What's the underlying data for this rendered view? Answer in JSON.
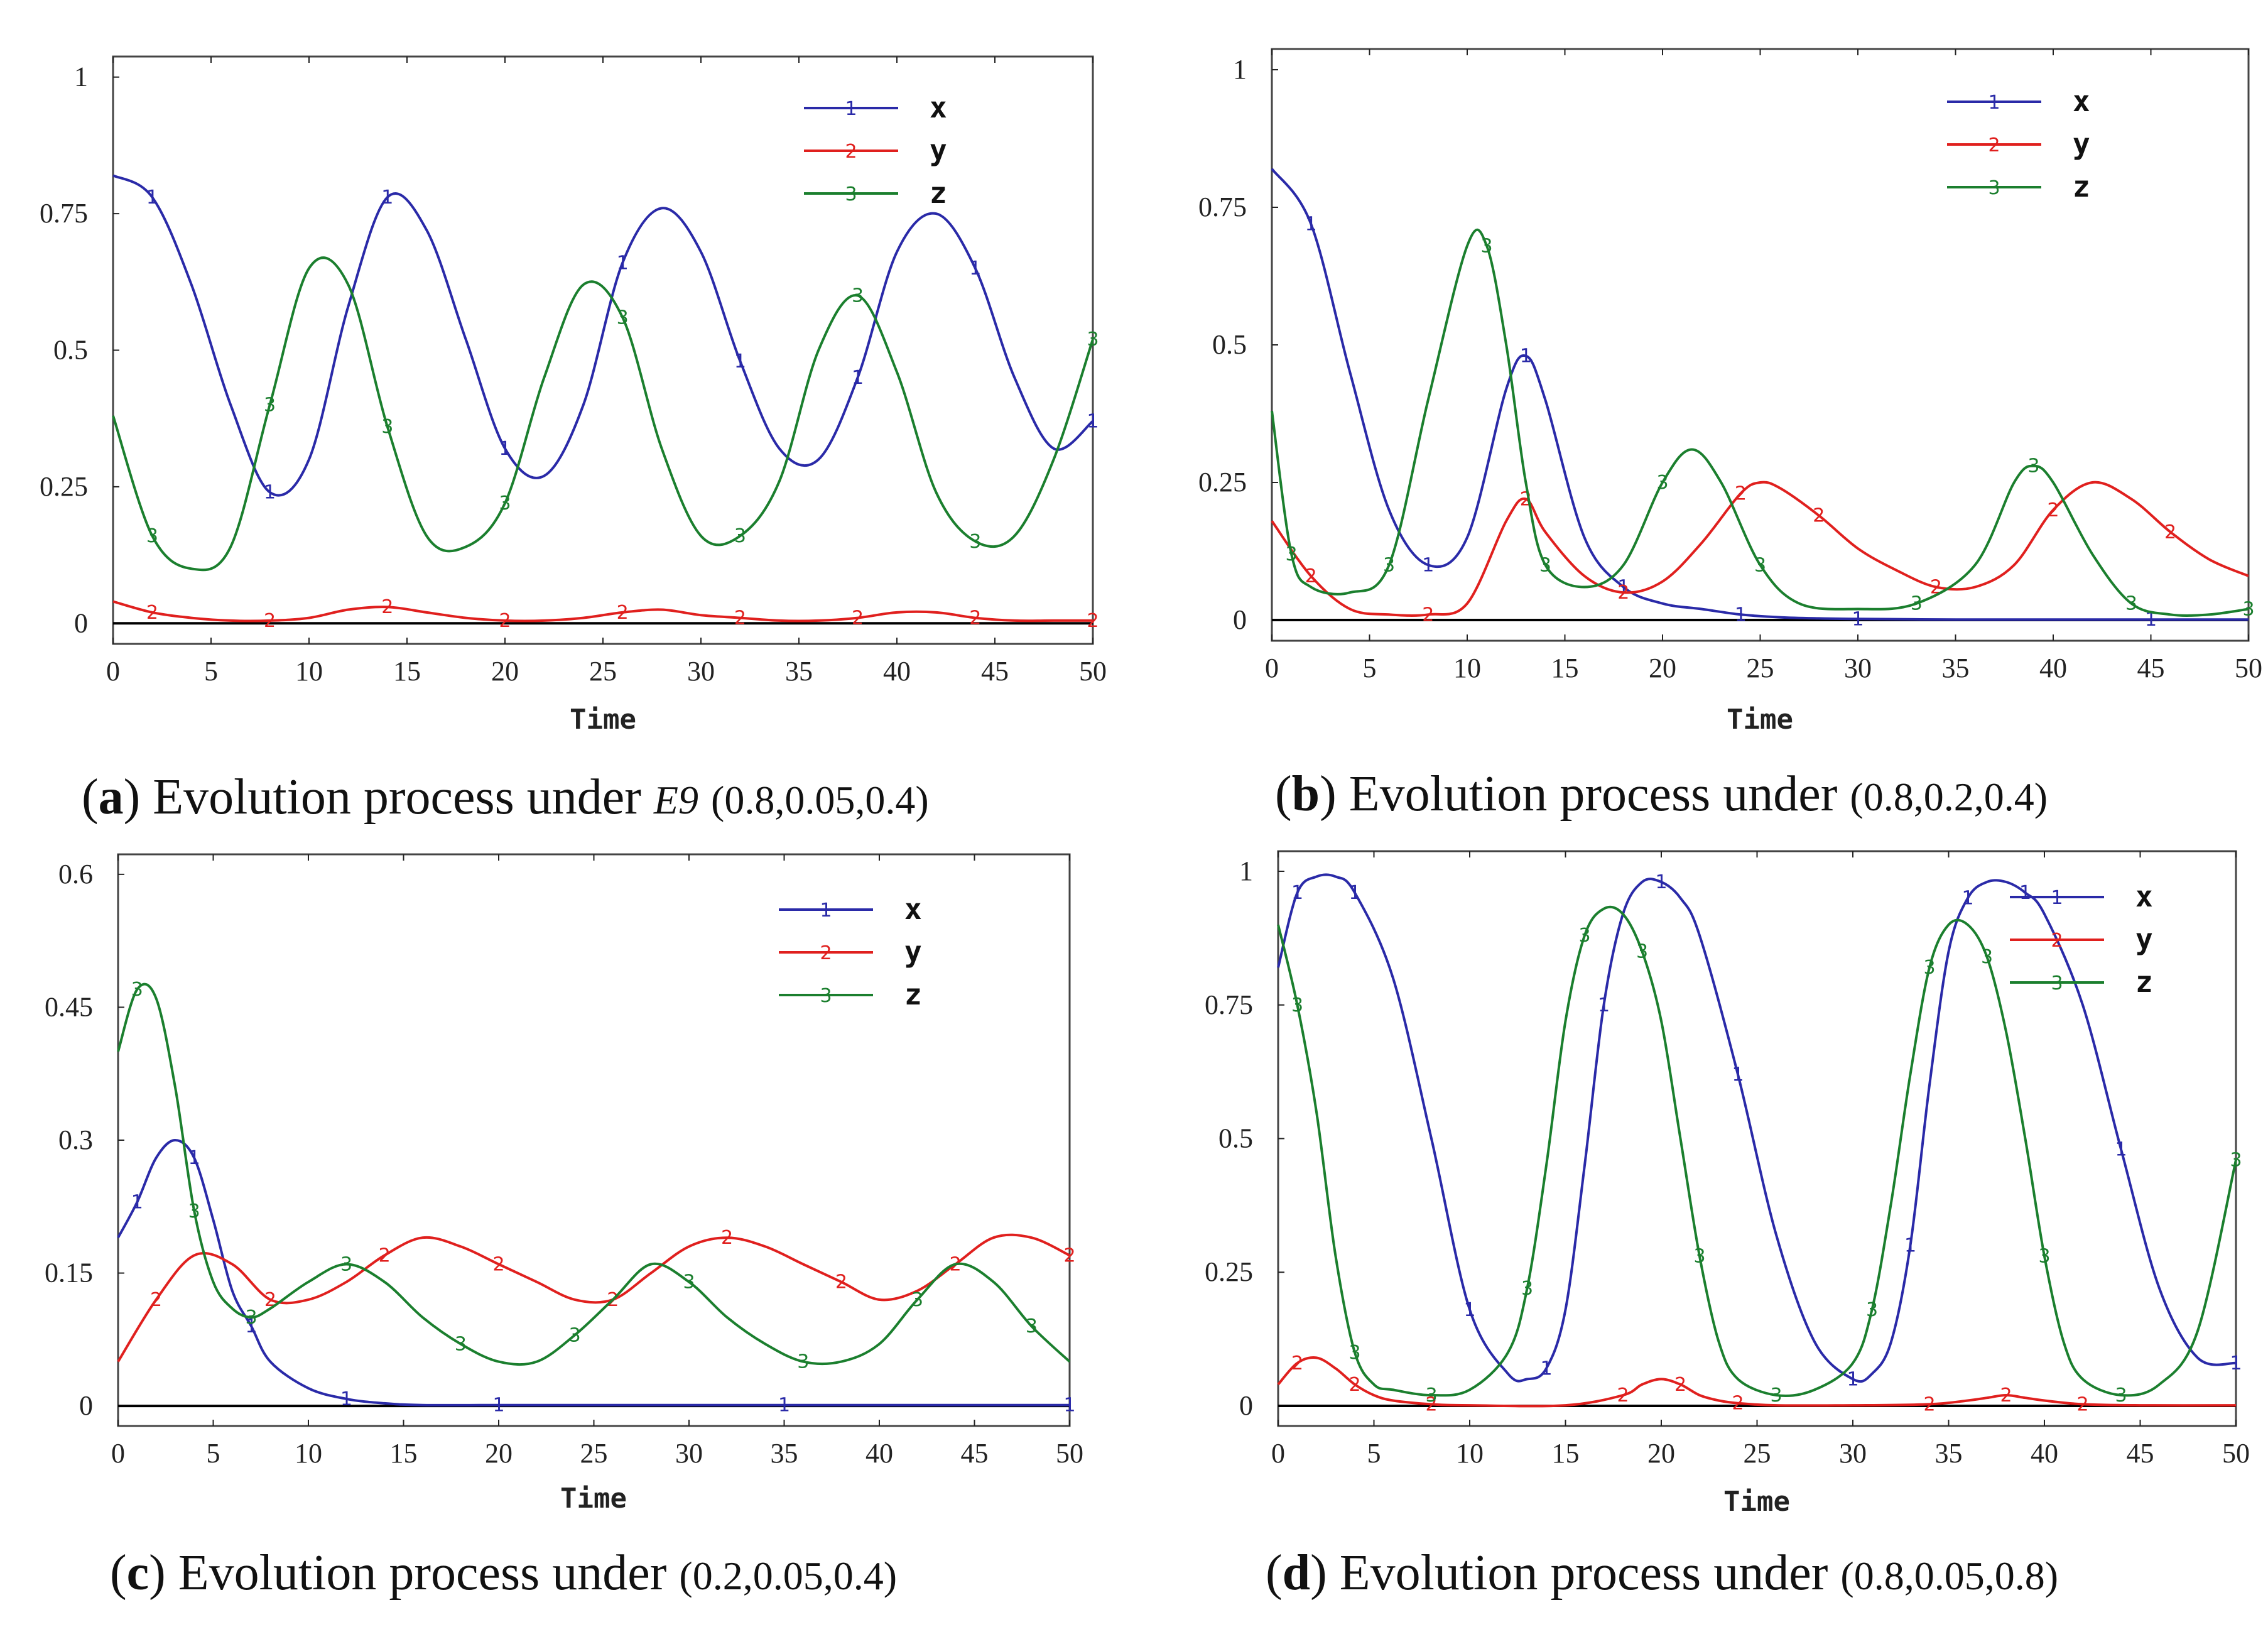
{
  "colors": {
    "x": "#2a2aa8",
    "y": "#e0201e",
    "z": "#1b7f2e",
    "axis": "#222222",
    "frame": "#444444"
  },
  "chart_data": [
    {
      "type": "line",
      "panel": "a",
      "caption": {
        "letter": "a",
        "text": "Evolution process under",
        "subscript_label": "E9",
        "params": "(0.8,0.05,0.4)"
      },
      "xlabel": "Time",
      "xlim": [
        0,
        50
      ],
      "ylim": [
        0,
        1
      ],
      "xticks": [
        "0",
        "5",
        "10",
        "15",
        "20",
        "25",
        "30",
        "35",
        "40",
        "45",
        "50"
      ],
      "yticks": [
        {
          "v": 0,
          "label": "0"
        },
        {
          "v": 0.25,
          "label": "0.25"
        },
        {
          "v": 0.5,
          "label": "0.5"
        },
        {
          "v": 0.75,
          "label": "0.75"
        },
        {
          "v": 1,
          "label": "1"
        }
      ],
      "legend": [
        {
          "marker": "1",
          "label": "x"
        },
        {
          "marker": "2",
          "label": "y"
        },
        {
          "marker": "3",
          "label": "z"
        }
      ],
      "series": [
        {
          "name": "x",
          "marker": "1",
          "color": "#2a2aa8",
          "x": [
            0,
            2,
            4,
            6,
            8,
            10,
            12,
            14,
            16,
            18,
            20,
            22,
            24,
            26,
            28,
            30,
            32,
            34,
            36,
            38,
            40,
            42,
            44,
            46,
            48,
            50
          ],
          "y": [
            0.82,
            0.78,
            0.62,
            0.4,
            0.24,
            0.3,
            0.58,
            0.78,
            0.72,
            0.52,
            0.32,
            0.27,
            0.4,
            0.66,
            0.76,
            0.68,
            0.48,
            0.32,
            0.3,
            0.45,
            0.68,
            0.75,
            0.65,
            0.45,
            0.32,
            0.37
          ]
        },
        {
          "name": "y",
          "marker": "2",
          "color": "#e0201e",
          "x": [
            0,
            2,
            4,
            6,
            8,
            10,
            12,
            14,
            16,
            18,
            20,
            22,
            24,
            26,
            28,
            30,
            32,
            34,
            36,
            38,
            40,
            42,
            44,
            46,
            48,
            50
          ],
          "y": [
            0.04,
            0.02,
            0.01,
            0.005,
            0.005,
            0.01,
            0.025,
            0.03,
            0.02,
            0.01,
            0.005,
            0.005,
            0.01,
            0.02,
            0.025,
            0.015,
            0.01,
            0.005,
            0.005,
            0.01,
            0.02,
            0.02,
            0.01,
            0.005,
            0.005,
            0.005
          ]
        },
        {
          "name": "z",
          "marker": "3",
          "color": "#1b7f2e",
          "x": [
            0,
            2,
            4,
            6,
            8,
            10,
            12,
            14,
            16,
            18,
            20,
            22,
            24,
            26,
            28,
            30,
            32,
            34,
            36,
            38,
            40,
            42,
            44,
            46,
            48,
            50
          ],
          "y": [
            0.38,
            0.16,
            0.1,
            0.14,
            0.4,
            0.65,
            0.62,
            0.36,
            0.16,
            0.14,
            0.22,
            0.45,
            0.62,
            0.56,
            0.32,
            0.16,
            0.16,
            0.26,
            0.5,
            0.6,
            0.46,
            0.24,
            0.15,
            0.16,
            0.3,
            0.52
          ]
        }
      ]
    },
    {
      "type": "line",
      "panel": "b",
      "caption": {
        "letter": "b",
        "text": "Evolution process under",
        "params": "(0.8,0.2,0.4)"
      },
      "xlabel": "Time",
      "xlim": [
        0,
        50
      ],
      "ylim": [
        0,
        1
      ],
      "xticks": [
        "0",
        "5",
        "10",
        "15",
        "20",
        "25",
        "30",
        "35",
        "40",
        "45",
        "50"
      ],
      "yticks": [
        {
          "v": 0,
          "label": "0"
        },
        {
          "v": 0.25,
          "label": "0.25"
        },
        {
          "v": 0.5,
          "label": "0.5"
        },
        {
          "v": 0.75,
          "label": "0.75"
        },
        {
          "v": 1,
          "label": "1"
        }
      ],
      "legend": [
        {
          "marker": "1",
          "label": "x"
        },
        {
          "marker": "2",
          "label": "y"
        },
        {
          "marker": "3",
          "label": "z"
        }
      ],
      "series": [
        {
          "name": "x",
          "marker": "1",
          "color": "#2a2aa8",
          "x": [
            0,
            2,
            4,
            6,
            8,
            10,
            12,
            13,
            14,
            16,
            18,
            20,
            22,
            24,
            26,
            28,
            30,
            35,
            40,
            45,
            50
          ],
          "y": [
            0.82,
            0.72,
            0.45,
            0.2,
            0.1,
            0.15,
            0.42,
            0.48,
            0.4,
            0.15,
            0.06,
            0.03,
            0.02,
            0.01,
            0.005,
            0.003,
            0.002,
            0.001,
            0.001,
            0.001,
            0.001
          ]
        },
        {
          "name": "y",
          "marker": "2",
          "color": "#e0201e",
          "x": [
            0,
            2,
            4,
            6,
            8,
            10,
            12,
            13,
            14,
            16,
            18,
            20,
            22,
            24,
            25,
            26,
            28,
            30,
            32,
            34,
            36,
            38,
            40,
            42,
            44,
            46,
            48,
            50
          ],
          "y": [
            0.18,
            0.08,
            0.02,
            0.01,
            0.01,
            0.03,
            0.18,
            0.22,
            0.16,
            0.08,
            0.05,
            0.07,
            0.14,
            0.23,
            0.25,
            0.24,
            0.19,
            0.13,
            0.09,
            0.06,
            0.06,
            0.1,
            0.2,
            0.25,
            0.22,
            0.16,
            0.11,
            0.08
          ]
        },
        {
          "name": "z",
          "marker": "3",
          "color": "#1b7f2e",
          "x": [
            0,
            1,
            2,
            4,
            6,
            8,
            10,
            11,
            12,
            13,
            14,
            16,
            18,
            20,
            21.5,
            23,
            25,
            27,
            30,
            33,
            36,
            38,
            39,
            40,
            42,
            44,
            46,
            48,
            50
          ],
          "y": [
            0.38,
            0.12,
            0.06,
            0.05,
            0.1,
            0.4,
            0.68,
            0.68,
            0.5,
            0.25,
            0.1,
            0.06,
            0.1,
            0.25,
            0.31,
            0.25,
            0.1,
            0.03,
            0.02,
            0.03,
            0.1,
            0.25,
            0.28,
            0.25,
            0.12,
            0.03,
            0.01,
            0.01,
            0.02
          ]
        }
      ]
    },
    {
      "type": "line",
      "panel": "c",
      "caption": {
        "letter": "c",
        "text": "Evolution process under",
        "params": "(0.2,0.05,0.4)"
      },
      "xlabel": "Time",
      "xlim": [
        0,
        50
      ],
      "ylim": [
        0,
        0.6
      ],
      "xticks": [
        "0",
        "5",
        "10",
        "15",
        "20",
        "25",
        "30",
        "35",
        "40",
        "45",
        "50"
      ],
      "yticks": [
        {
          "v": 0,
          "label": "0"
        },
        {
          "v": 0.15,
          "label": "0.15"
        },
        {
          "v": 0.3,
          "label": "0.3"
        },
        {
          "v": 0.45,
          "label": "0.45"
        },
        {
          "v": 0.6,
          "label": "0.6"
        }
      ],
      "legend": [
        {
          "marker": "1",
          "label": "x"
        },
        {
          "marker": "2",
          "label": "y"
        },
        {
          "marker": "3",
          "label": "z"
        }
      ],
      "series": [
        {
          "name": "x",
          "marker": "1",
          "color": "#2a2aa8",
          "x": [
            0,
            1,
            2,
            3,
            4,
            5,
            6,
            7,
            8,
            10,
            12,
            14,
            16,
            20,
            25,
            30,
            35,
            40,
            45,
            50
          ],
          "y": [
            0.19,
            0.23,
            0.28,
            0.3,
            0.28,
            0.21,
            0.13,
            0.09,
            0.05,
            0.02,
            0.008,
            0.003,
            0.001,
            0.001,
            0.001,
            0.001,
            0.001,
            0.001,
            0.001,
            0.001
          ]
        },
        {
          "name": "y",
          "marker": "2",
          "color": "#e0201e",
          "x": [
            0,
            2,
            4,
            6,
            8,
            10,
            12,
            14,
            16,
            18,
            20,
            22,
            24,
            26,
            28,
            30,
            32,
            34,
            36,
            38,
            40,
            42,
            44,
            46,
            48,
            50
          ],
          "y": [
            0.05,
            0.12,
            0.17,
            0.16,
            0.12,
            0.12,
            0.14,
            0.17,
            0.19,
            0.18,
            0.16,
            0.14,
            0.12,
            0.12,
            0.15,
            0.18,
            0.19,
            0.18,
            0.16,
            0.14,
            0.12,
            0.13,
            0.16,
            0.19,
            0.19,
            0.17
          ]
        },
        {
          "name": "z",
          "marker": "3",
          "color": "#1b7f2e",
          "x": [
            0,
            1,
            2,
            3,
            4,
            5,
            6,
            7,
            8,
            10,
            12,
            14,
            16,
            18,
            20,
            22,
            24,
            26,
            28,
            30,
            32,
            34,
            36,
            38,
            40,
            42,
            44,
            46,
            48,
            50
          ],
          "y": [
            0.4,
            0.47,
            0.46,
            0.36,
            0.22,
            0.14,
            0.11,
            0.1,
            0.11,
            0.14,
            0.16,
            0.14,
            0.1,
            0.07,
            0.05,
            0.05,
            0.08,
            0.12,
            0.16,
            0.14,
            0.1,
            0.07,
            0.05,
            0.05,
            0.07,
            0.12,
            0.16,
            0.14,
            0.09,
            0.05
          ]
        }
      ]
    },
    {
      "type": "line",
      "panel": "d",
      "caption": {
        "letter": "d",
        "text": "Evolution process under",
        "params": "(0.8,0.05,0.8)"
      },
      "xlabel": "Time",
      "xlim": [
        0,
        50
      ],
      "ylim": [
        0,
        1
      ],
      "xticks": [
        "0",
        "5",
        "10",
        "15",
        "20",
        "25",
        "30",
        "35",
        "40",
        "45",
        "50"
      ],
      "yticks": [
        {
          "v": 0,
          "label": "0"
        },
        {
          "v": 0.25,
          "label": "0.25"
        },
        {
          "v": 0.5,
          "label": "0.5"
        },
        {
          "v": 0.75,
          "label": "0.75"
        },
        {
          "v": 1,
          "label": "1"
        }
      ],
      "legend": [
        {
          "marker": "1",
          "label": "x"
        },
        {
          "marker": "2",
          "label": "y"
        },
        {
          "marker": "3",
          "label": "z"
        }
      ],
      "series": [
        {
          "name": "x",
          "marker": "1",
          "color": "#2a2aa8",
          "x": [
            0,
            1,
            2,
            3,
            4,
            6,
            8,
            10,
            12,
            13,
            14,
            15,
            16,
            17,
            18,
            19,
            20,
            21,
            22,
            24,
            26,
            28,
            30,
            31,
            32,
            33,
            34,
            35,
            36,
            37,
            38,
            39,
            40,
            42,
            44,
            46,
            48,
            50
          ],
          "y": [
            0.82,
            0.96,
            0.99,
            0.99,
            0.96,
            0.8,
            0.5,
            0.18,
            0.06,
            0.05,
            0.07,
            0.18,
            0.45,
            0.75,
            0.92,
            0.98,
            0.98,
            0.95,
            0.88,
            0.62,
            0.32,
            0.12,
            0.05,
            0.06,
            0.12,
            0.3,
            0.6,
            0.85,
            0.95,
            0.98,
            0.98,
            0.96,
            0.92,
            0.75,
            0.48,
            0.22,
            0.09,
            0.08
          ]
        },
        {
          "name": "y",
          "marker": "2",
          "color": "#e0201e",
          "x": [
            0,
            1,
            2,
            3,
            4,
            5,
            6,
            8,
            10,
            15,
            18,
            19,
            20,
            21,
            22,
            23,
            24,
            26,
            30,
            34,
            36,
            37,
            38,
            39,
            40,
            42,
            45,
            50
          ],
          "y": [
            0.04,
            0.08,
            0.09,
            0.07,
            0.04,
            0.02,
            0.01,
            0.003,
            0.001,
            0.001,
            0.02,
            0.04,
            0.05,
            0.04,
            0.02,
            0.01,
            0.005,
            0.001,
            0.001,
            0.003,
            0.01,
            0.015,
            0.02,
            0.015,
            0.01,
            0.003,
            0.001,
            0.001
          ]
        },
        {
          "name": "z",
          "marker": "3",
          "color": "#1b7f2e",
          "x": [
            0,
            1,
            2,
            3,
            4,
            5,
            6,
            8,
            10,
            12,
            13,
            14,
            15,
            16,
            17,
            18,
            19,
            20,
            21,
            22,
            23,
            24,
            26,
            28,
            30,
            31,
            32,
            33,
            34,
            35,
            36,
            37,
            38,
            39,
            40,
            41,
            42,
            44,
            46,
            48,
            50
          ],
          "y": [
            0.9,
            0.75,
            0.55,
            0.28,
            0.1,
            0.04,
            0.03,
            0.02,
            0.03,
            0.1,
            0.22,
            0.45,
            0.72,
            0.88,
            0.93,
            0.92,
            0.85,
            0.72,
            0.5,
            0.28,
            0.12,
            0.05,
            0.02,
            0.03,
            0.08,
            0.18,
            0.38,
            0.62,
            0.82,
            0.9,
            0.9,
            0.84,
            0.7,
            0.5,
            0.28,
            0.12,
            0.05,
            0.02,
            0.04,
            0.14,
            0.46
          ]
        }
      ]
    }
  ]
}
